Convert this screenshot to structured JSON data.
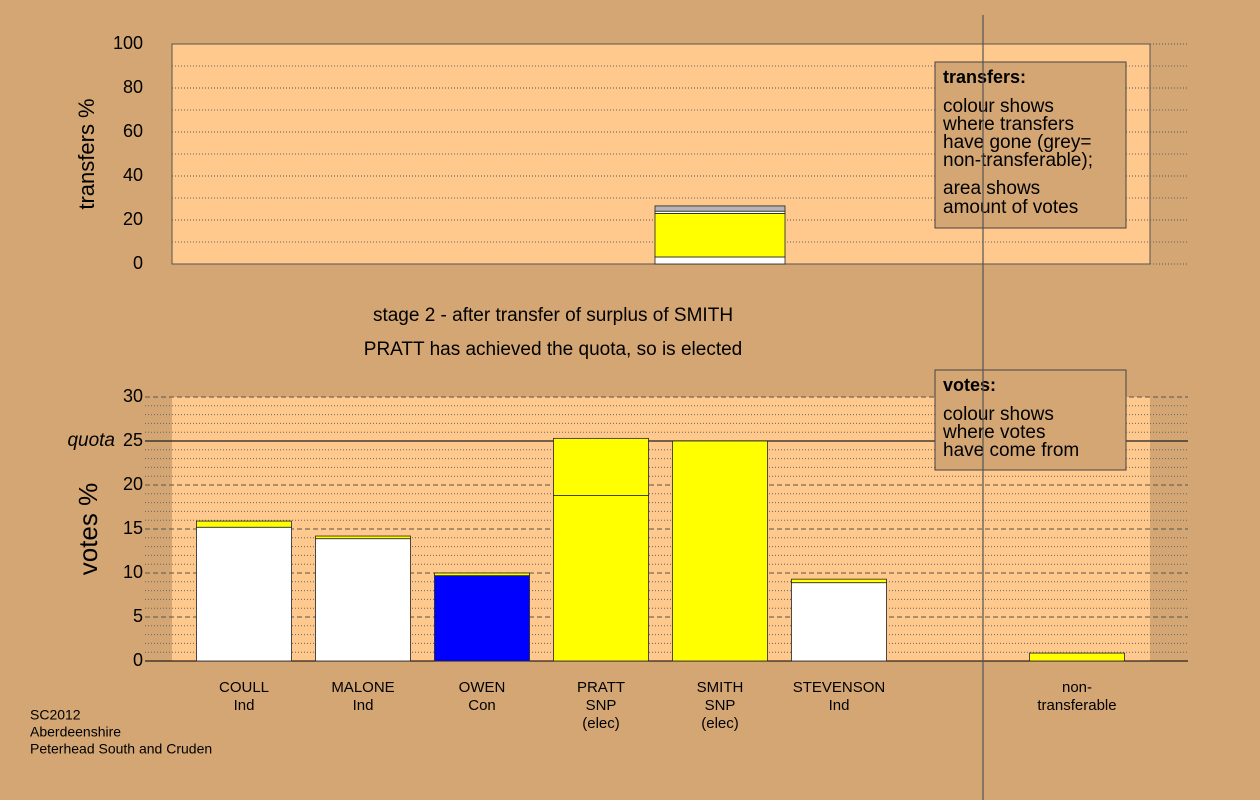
{
  "chart_data": [
    {
      "type": "bar",
      "stacked": true,
      "ylabel": "transfers %",
      "ylim": [
        0,
        100
      ],
      "yticks": [
        0,
        20,
        40,
        60,
        80,
        100
      ],
      "minor_yticks": [
        10,
        30,
        50,
        70,
        90
      ],
      "series": [
        {
          "color": "#ffffff",
          "values": [
            null,
            null,
            null,
            null,
            3.2,
            null,
            null,
            null
          ]
        },
        {
          "color": "#ffff00",
          "values": [
            null,
            null,
            null,
            null,
            19.8,
            null,
            null,
            null
          ]
        },
        {
          "color": "#ffffff",
          "values": [
            null,
            null,
            null,
            null,
            1.0,
            null,
            null,
            null
          ]
        },
        {
          "color": "#b4b4b4",
          "values": [
            null,
            null,
            null,
            null,
            2.4,
            null,
            null,
            null
          ]
        }
      ],
      "annotation": {
        "title": "transfers:",
        "paragraphs": [
          [
            "colour shows",
            "where transfers",
            "have gone (grey=",
            "non-transferable);"
          ],
          [
            "area shows",
            "amount of votes"
          ]
        ]
      }
    },
    {
      "type": "bar",
      "stacked": true,
      "ylabel": "votes %",
      "title": [
        "stage 2 - after transfer of surplus of SMITH",
        "PRATT has achieved the quota, so is elected"
      ],
      "categories": [
        [
          "COULL",
          "Ind"
        ],
        [
          "MALONE",
          "Ind"
        ],
        [
          "OWEN",
          "Con"
        ],
        [
          "PRATT",
          "SNP",
          "(elec)"
        ],
        [
          "SMITH",
          "SNP",
          "(elec)"
        ],
        [
          "STEVENSON",
          "Ind"
        ],
        null,
        [
          "non-",
          "transferable"
        ]
      ],
      "ylim": [
        0,
        30
      ],
      "yticks": [
        0,
        5,
        10,
        15,
        20,
        25,
        30
      ],
      "minor_yticks": [
        1,
        2,
        3,
        4,
        6,
        7,
        8,
        9,
        11,
        12,
        13,
        14,
        16,
        17,
        18,
        19,
        21,
        22,
        23,
        24,
        26,
        27,
        28,
        29
      ],
      "quota": {
        "value": 25,
        "label": "quota"
      },
      "series": [
        {
          "colors": [
            "#ffffff",
            "#ffffff",
            "#0000ff",
            "#ffff00",
            "#ffff00",
            "#ffffff",
            null,
            null
          ],
          "values": [
            15.2,
            13.9,
            9.7,
            18.8,
            25.0,
            8.9,
            null,
            null
          ]
        },
        {
          "color": "#ffff00",
          "values": [
            0.7,
            0.3,
            0.3,
            6.5,
            null,
            0.4,
            null,
            0.9
          ]
        }
      ],
      "annotation": {
        "title": "votes:",
        "paragraphs": [
          [
            "colour shows",
            "where votes",
            "have come from"
          ]
        ]
      }
    }
  ],
  "footer": [
    "SC2012",
    "Aberdeenshire",
    "Peterhead South and Cruden"
  ]
}
